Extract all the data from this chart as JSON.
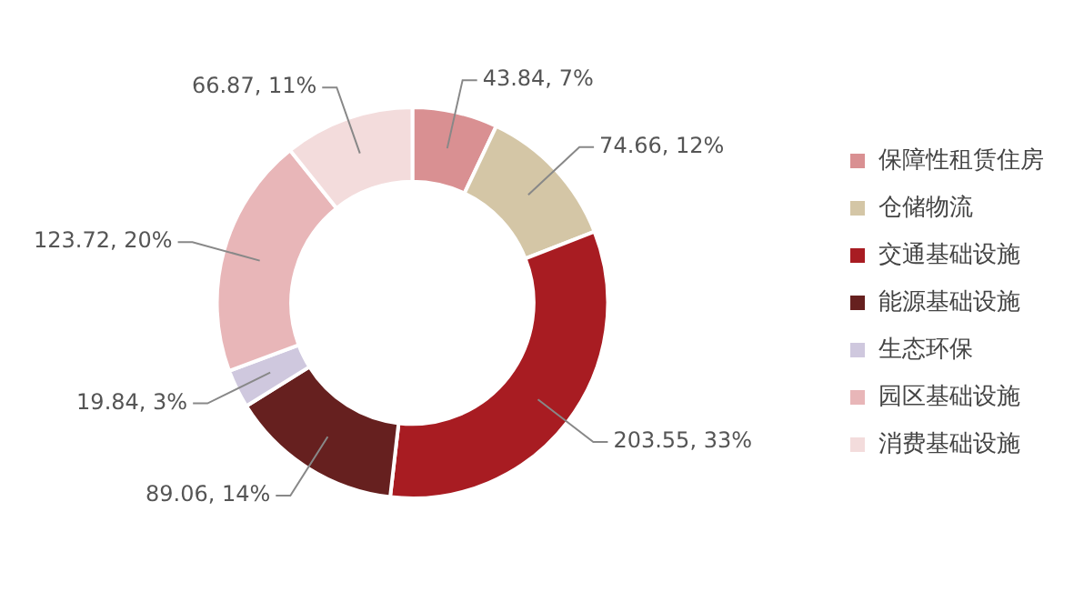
{
  "chart_data": {
    "type": "donut",
    "categories": [
      "保障性租赁住房",
      "仓储物流",
      "交通基础设施",
      "能源基础设施",
      "生态环保",
      "园区基础设施",
      "消费基础设施"
    ],
    "values": [
      43.84,
      74.66,
      203.55,
      89.06,
      19.84,
      123.72,
      66.87
    ],
    "value_labels": [
      "43.84, 7%",
      "74.66, 12%",
      "203.55, 33%",
      "89.06, 14%",
      "19.84, 3%",
      "123.72, 20%",
      "66.87, 11%"
    ],
    "colors": [
      "#d99092",
      "#d4c6a6",
      "#a81c22",
      "#66201f",
      "#cfc8de",
      "#e8b6b8",
      "#f3dcdc"
    ],
    "legend": "right"
  }
}
